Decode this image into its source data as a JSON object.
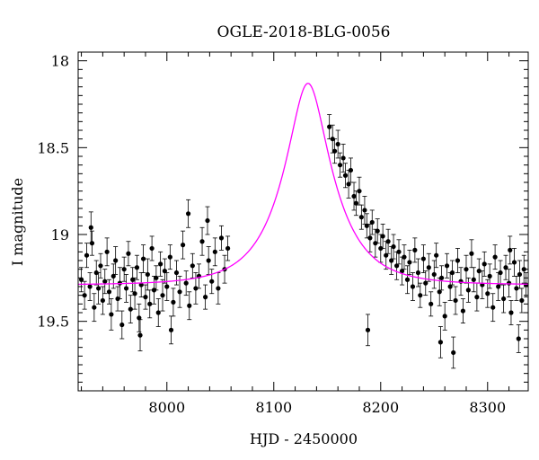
{
  "chart_data": {
    "type": "scatter",
    "title": "OGLE-2018-BLG-0056",
    "xlabel": "HJD - 2450000",
    "ylabel": "I magnitude",
    "xlim": [
      7917,
      8338
    ],
    "ylim": [
      19.9,
      17.95
    ],
    "y_inverted": true,
    "grid": false,
    "legend": "none",
    "x_ticks": [
      8000,
      8100,
      8200,
      8300
    ],
    "y_ticks": [
      18,
      18.5,
      19,
      19.5
    ],
    "x_tick_labels": [
      "8000",
      "8100",
      "8200",
      "8300"
    ],
    "y_tick_labels": [
      "18",
      "18.5",
      "19",
      "19.5"
    ],
    "colors": {
      "points": "#000000",
      "model": "#ff00ff"
    },
    "model": {
      "name": "",
      "type": "microlensing-fit",
      "baseline_mag": 19.29,
      "t0": 8132,
      "u0": 0.36,
      "tE": 45,
      "samples": [
        [
          7920,
          19.28
        ],
        [
          7960,
          19.26
        ],
        [
          8000,
          19.22
        ],
        [
          8030,
          19.14
        ],
        [
          8060,
          19.02
        ],
        [
          8080,
          18.88
        ],
        [
          8100,
          18.65
        ],
        [
          8115,
          18.42
        ],
        [
          8125,
          18.28
        ],
        [
          8132,
          18.24
        ],
        [
          8140,
          18.26
        ],
        [
          8150,
          18.35
        ],
        [
          8160,
          18.52
        ],
        [
          8175,
          18.72
        ],
        [
          8190,
          18.9
        ],
        [
          8210,
          19.04
        ],
        [
          8240,
          19.16
        ],
        [
          8270,
          19.23
        ],
        [
          8300,
          19.26
        ],
        [
          8338,
          19.28
        ]
      ]
    },
    "series": [
      {
        "name": "",
        "marker": "filled-circle-with-errorbars",
        "points": [
          [
            7920,
            19.26,
            0.07
          ],
          [
            7923,
            19.35,
            0.08
          ],
          [
            7925,
            19.12,
            0.07
          ],
          [
            7928,
            19.3,
            0.08
          ],
          [
            7930,
            19.05,
            0.07
          ],
          [
            7932,
            19.42,
            0.08
          ],
          [
            7934,
            19.22,
            0.07
          ],
          [
            7936,
            19.31,
            0.09
          ],
          [
            7938,
            19.18,
            0.07
          ],
          [
            7940,
            19.38,
            0.08
          ],
          [
            7942,
            19.27,
            0.07
          ],
          [
            7944,
            19.1,
            0.08
          ],
          [
            7946,
            19.33,
            0.07
          ],
          [
            7948,
            19.46,
            0.09
          ],
          [
            7950,
            19.24,
            0.07
          ],
          [
            7952,
            19.15,
            0.08
          ],
          [
            7954,
            19.37,
            0.07
          ],
          [
            7956,
            19.28,
            0.09
          ],
          [
            7958,
            19.52,
            0.08
          ],
          [
            7960,
            19.2,
            0.07
          ],
          [
            7962,
            19.31,
            0.08
          ],
          [
            7964,
            19.11,
            0.07
          ],
          [
            7966,
            19.43,
            0.08
          ],
          [
            7968,
            19.26,
            0.07
          ],
          [
            7970,
            19.34,
            0.09
          ],
          [
            7972,
            19.19,
            0.07
          ],
          [
            7974,
            19.48,
            0.08
          ],
          [
            7976,
            19.29,
            0.07
          ],
          [
            7978,
            19.14,
            0.08
          ],
          [
            7980,
            19.36,
            0.07
          ],
          [
            7982,
            19.23,
            0.09
          ],
          [
            7984,
            19.4,
            0.08
          ],
          [
            7986,
            19.08,
            0.07
          ],
          [
            7988,
            19.32,
            0.08
          ],
          [
            7990,
            19.25,
            0.07
          ],
          [
            7992,
            19.45,
            0.08
          ],
          [
            7994,
            19.17,
            0.07
          ],
          [
            7996,
            19.35,
            0.09
          ],
          [
            7998,
            19.21,
            0.07
          ],
          [
            8000,
            19.3,
            0.08
          ],
          [
            8003,
            19.13,
            0.07
          ],
          [
            8006,
            19.39,
            0.08
          ],
          [
            8009,
            19.22,
            0.07
          ],
          [
            8012,
            19.33,
            0.09
          ],
          [
            8015,
            19.06,
            0.08
          ],
          [
            8018,
            19.28,
            0.07
          ],
          [
            8021,
            19.41,
            0.08
          ],
          [
            8024,
            19.18,
            0.07
          ],
          [
            8027,
            19.31,
            0.09
          ],
          [
            8030,
            19.24,
            0.07
          ],
          [
            8033,
            19.04,
            0.08
          ],
          [
            8036,
            19.36,
            0.07
          ],
          [
            8039,
            19.15,
            0.08
          ],
          [
            8042,
            19.27,
            0.07
          ],
          [
            8045,
            19.1,
            0.08
          ],
          [
            8048,
            19.31,
            0.09
          ],
          [
            8051,
            19.02,
            0.07
          ],
          [
            8054,
            19.2,
            0.08
          ],
          [
            8057,
            19.08,
            0.07
          ],
          [
            8020,
            18.88,
            0.08
          ],
          [
            8038,
            18.92,
            0.08
          ],
          [
            7929,
            18.96,
            0.09
          ],
          [
            8004,
            19.55,
            0.08
          ],
          [
            7975,
            19.58,
            0.09
          ],
          [
            8152,
            18.38,
            0.07
          ],
          [
            8155,
            18.45,
            0.08
          ],
          [
            8157,
            18.52,
            0.07
          ],
          [
            8160,
            18.48,
            0.08
          ],
          [
            8162,
            18.6,
            0.07
          ],
          [
            8165,
            18.56,
            0.08
          ],
          [
            8167,
            18.66,
            0.07
          ],
          [
            8170,
            18.71,
            0.08
          ],
          [
            8172,
            18.63,
            0.07
          ],
          [
            8175,
            18.78,
            0.08
          ],
          [
            8177,
            18.82,
            0.07
          ],
          [
            8180,
            18.75,
            0.08
          ],
          [
            8182,
            18.9,
            0.07
          ],
          [
            8185,
            18.86,
            0.08
          ],
          [
            8187,
            18.95,
            0.07
          ],
          [
            8190,
            19.02,
            0.08
          ],
          [
            8192,
            18.93,
            0.07
          ],
          [
            8195,
            19.05,
            0.08
          ],
          [
            8197,
            18.98,
            0.07
          ],
          [
            8200,
            19.08,
            0.08
          ],
          [
            8202,
            19.01,
            0.07
          ],
          [
            8205,
            19.12,
            0.08
          ],
          [
            8207,
            19.04,
            0.07
          ],
          [
            8210,
            19.15,
            0.08
          ],
          [
            8212,
            19.07,
            0.07
          ],
          [
            8215,
            19.18,
            0.08
          ],
          [
            8217,
            19.1,
            0.07
          ],
          [
            8220,
            19.21,
            0.08
          ],
          [
            8222,
            19.13,
            0.07
          ],
          [
            8225,
            19.26,
            0.08
          ],
          [
            8227,
            19.16,
            0.07
          ],
          [
            8230,
            19.3,
            0.08
          ],
          [
            8232,
            19.09,
            0.07
          ],
          [
            8235,
            19.22,
            0.08
          ],
          [
            8237,
            19.35,
            0.07
          ],
          [
            8240,
            19.14,
            0.08
          ],
          [
            8242,
            19.28,
            0.07
          ],
          [
            8245,
            19.19,
            0.08
          ],
          [
            8247,
            19.4,
            0.07
          ],
          [
            8250,
            19.23,
            0.08
          ],
          [
            8252,
            19.12,
            0.07
          ],
          [
            8255,
            19.33,
            0.08
          ],
          [
            8257,
            19.25,
            0.07
          ],
          [
            8260,
            19.47,
            0.08
          ],
          [
            8262,
            19.18,
            0.07
          ],
          [
            8265,
            19.3,
            0.08
          ],
          [
            8267,
            19.22,
            0.07
          ],
          [
            8270,
            19.38,
            0.08
          ],
          [
            8272,
            19.15,
            0.07
          ],
          [
            8275,
            19.27,
            0.08
          ],
          [
            8277,
            19.44,
            0.07
          ],
          [
            8280,
            19.2,
            0.08
          ],
          [
            8282,
            19.32,
            0.07
          ],
          [
            8285,
            19.11,
            0.08
          ],
          [
            8287,
            19.26,
            0.07
          ],
          [
            8290,
            19.36,
            0.08
          ],
          [
            8292,
            19.21,
            0.07
          ],
          [
            8295,
            19.29,
            0.08
          ],
          [
            8297,
            19.17,
            0.07
          ],
          [
            8300,
            19.34,
            0.08
          ],
          [
            8302,
            19.24,
            0.07
          ],
          [
            8305,
            19.42,
            0.08
          ],
          [
            8307,
            19.13,
            0.07
          ],
          [
            8310,
            19.3,
            0.08
          ],
          [
            8312,
            19.22,
            0.07
          ],
          [
            8315,
            19.37,
            0.08
          ],
          [
            8317,
            19.19,
            0.07
          ],
          [
            8320,
            19.28,
            0.08
          ],
          [
            8322,
            19.45,
            0.07
          ],
          [
            8325,
            19.16,
            0.08
          ],
          [
            8327,
            19.31,
            0.07
          ],
          [
            8330,
            19.23,
            0.08
          ],
          [
            8332,
            19.38,
            0.07
          ],
          [
            8334,
            19.2,
            0.08
          ],
          [
            8336,
            19.29,
            0.07
          ],
          [
            8188,
            19.55,
            0.09
          ],
          [
            8256,
            19.62,
            0.09
          ],
          [
            8268,
            19.68,
            0.09
          ],
          [
            8329,
            19.6,
            0.08
          ],
          [
            8321,
            19.09,
            0.08
          ]
        ]
      }
    ]
  }
}
